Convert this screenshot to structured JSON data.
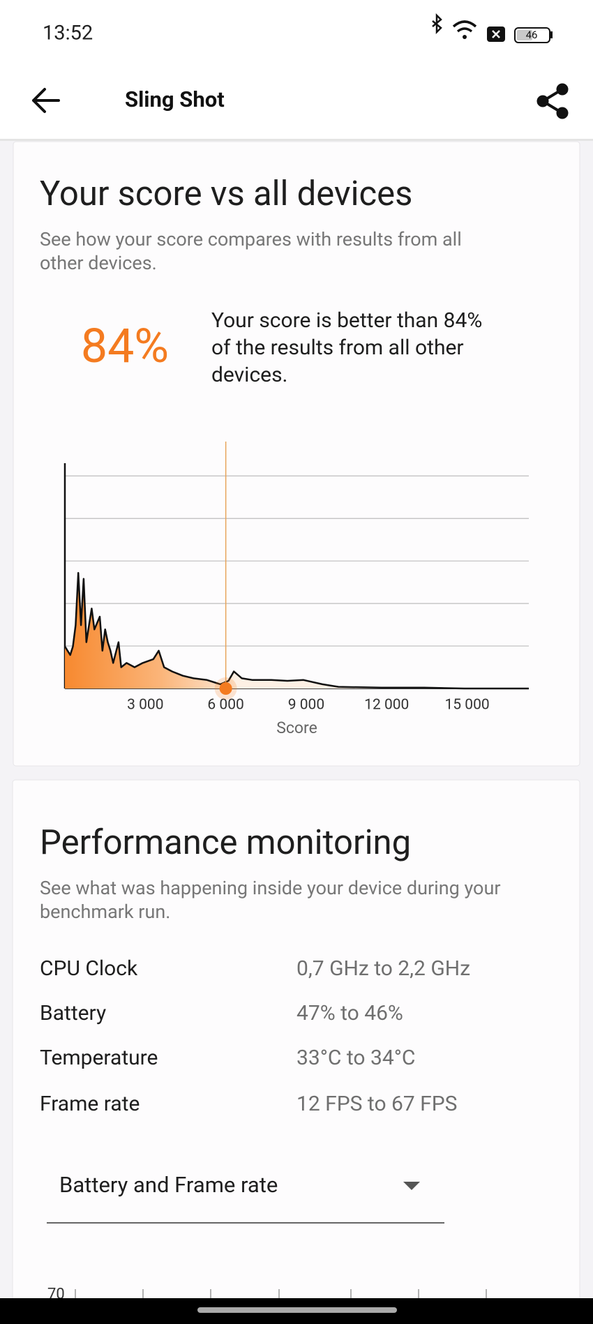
{
  "status_bar": {
    "time": "13:52",
    "battery": "46"
  },
  "app_bar": {
    "title": "Sling Shot"
  },
  "score_card": {
    "title": "Your score vs all devices",
    "subtitle": [
      "See how your score compares with results from all",
      "other devices."
    ],
    "percentile": "84%",
    "description": [
      "Your score is better than 84%",
      "of the results from all other",
      "devices."
    ],
    "chart_data": {
      "type": "area",
      "x": [
        0,
        100,
        200,
        300,
        400,
        500,
        600,
        700,
        800,
        900,
        1000,
        1100,
        1300,
        1400,
        1500,
        1600,
        1700,
        1800,
        2000,
        2100,
        2300,
        2600,
        2900,
        3300,
        3500,
        3700,
        4000,
        4400,
        4800,
        5300,
        5600,
        5800,
        6100,
        6300,
        6600,
        7000,
        7700,
        8300,
        8900,
        9600,
        10200,
        11800,
        13400,
        14900,
        17300
      ],
      "values": [
        0.99,
        0.89,
        0.79,
        0.99,
        1.49,
        2.72,
        1.49,
        2.58,
        1.09,
        1.49,
        1.88,
        1.39,
        1.69,
        0.89,
        1.39,
        1.09,
        0.89,
        0.6,
        1.09,
        0.5,
        0.6,
        0.5,
        0.6,
        0.69,
        0.89,
        0.5,
        0.4,
        0.3,
        0.24,
        0.2,
        0.14,
        0.1,
        0.18,
        0.4,
        0.24,
        0.2,
        0.2,
        0.18,
        0.2,
        0.1,
        0.04,
        0.02,
        0.02,
        0,
        0
      ],
      "xlim": [
        0,
        17300
      ],
      "ylim": [
        0,
        5.3
      ],
      "xticks": [
        {
          "value": 3000,
          "label": "3 000"
        },
        {
          "value": 6000,
          "label": "6 000"
        },
        {
          "value": 9000,
          "label": "9 000"
        },
        {
          "value": 12000,
          "label": "12 000"
        },
        {
          "value": 15000,
          "label": "15 000"
        }
      ],
      "yticks": [
        0,
        1,
        2,
        3,
        4,
        5
      ],
      "grid": true,
      "xlabel": "Score",
      "marker_x": 6000,
      "color": "#f47b20"
    }
  },
  "performance": {
    "title": "Performance monitoring",
    "subtitle": [
      "See what was happening inside your device during your",
      "benchmark run."
    ],
    "rows": [
      [
        "CPU Clock",
        "0,7 GHz to 2,2 GHz"
      ],
      [
        "Battery",
        "47% to 46%"
      ],
      [
        "Temperature",
        "33°C to 34°C"
      ],
      [
        "Frame rate",
        "12 FPS to 67 FPS"
      ]
    ],
    "dropdown": "Battery and Frame rate",
    "partial_axis_label": "70"
  }
}
